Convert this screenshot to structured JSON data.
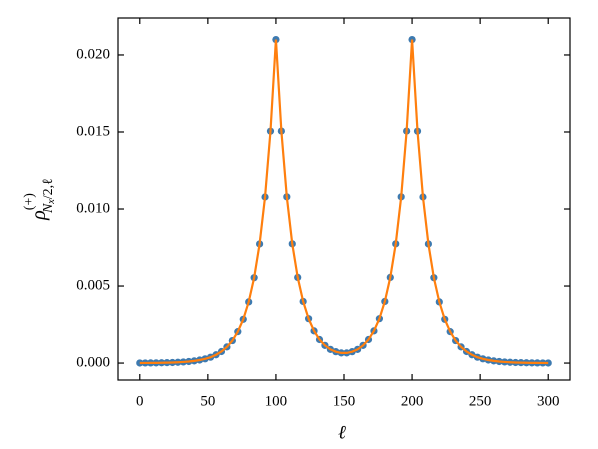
{
  "chart_data": {
    "type": "scatter",
    "xlabel": "ℓ",
    "ylabel": [
      "ρ",
      "(+)",
      "N",
      "x",
      "/2,ℓ"
    ],
    "x": [
      0,
      4,
      8,
      12,
      16,
      20,
      24,
      28,
      32,
      36,
      40,
      44,
      48,
      52,
      56,
      60,
      64,
      68,
      72,
      76,
      80,
      84,
      88,
      92,
      96,
      100,
      104,
      108,
      112,
      116,
      120,
      124,
      128,
      132,
      136,
      140,
      144,
      148,
      152,
      156,
      160,
      164,
      168,
      172,
      176,
      180,
      184,
      188,
      192,
      196,
      200,
      204,
      208,
      212,
      216,
      220,
      224,
      228,
      232,
      236,
      240,
      244,
      248,
      252,
      256,
      260,
      264,
      268,
      272,
      276,
      280,
      284,
      288,
      292,
      296,
      300
    ],
    "series": [
      {
        "color": "#3d7ab0",
        "style": "markers",
        "values": [
          5e-06,
          7e-06,
          1e-05,
          1.4e-05,
          1.9e-05,
          2.7e-05,
          3.7e-05,
          5.2e-05,
          7.3e-05,
          0.000101,
          0.000142,
          0.000198,
          0.000276,
          0.00038,
          0.00054,
          0.00075,
          0.00105,
          0.00146,
          0.00204,
          0.00284,
          0.00397,
          0.00554,
          0.00773,
          0.01078,
          0.01505,
          0.021,
          0.01506,
          0.01079,
          0.00774,
          0.00556,
          0.004,
          0.00288,
          0.00209,
          0.00153,
          0.00115,
          0.00089,
          0.00074,
          0.00066,
          0.00066,
          0.00074,
          0.00089,
          0.00115,
          0.00153,
          0.00209,
          0.00288,
          0.004,
          0.00556,
          0.00774,
          0.01079,
          0.01506,
          0.021,
          0.01505,
          0.01078,
          0.00773,
          0.00554,
          0.00397,
          0.00284,
          0.00204,
          0.00146,
          0.00105,
          0.00075,
          0.00054,
          0.00038,
          0.000276,
          0.000198,
          0.000142,
          0.000101,
          7.3e-05,
          5.2e-05,
          3.7e-05,
          2.7e-05,
          1.9e-05,
          1.4e-05,
          1e-05,
          7e-06,
          5e-06
        ]
      },
      {
        "color": "#ff7f0e",
        "style": "line",
        "values": [
          5e-06,
          7e-06,
          1e-05,
          1.4e-05,
          1.9e-05,
          2.7e-05,
          3.7e-05,
          5.2e-05,
          7.3e-05,
          0.000101,
          0.000142,
          0.000198,
          0.000276,
          0.00038,
          0.00054,
          0.00075,
          0.00105,
          0.00146,
          0.00204,
          0.00284,
          0.00397,
          0.00554,
          0.00773,
          0.01078,
          0.01505,
          0.021,
          0.01506,
          0.01079,
          0.00774,
          0.00556,
          0.004,
          0.00288,
          0.00209,
          0.00153,
          0.00115,
          0.00089,
          0.00074,
          0.00066,
          0.00066,
          0.00074,
          0.00089,
          0.00115,
          0.00153,
          0.00209,
          0.00288,
          0.004,
          0.00556,
          0.00774,
          0.01079,
          0.01506,
          0.021,
          0.01505,
          0.01078,
          0.00773,
          0.00554,
          0.00397,
          0.00284,
          0.00204,
          0.00146,
          0.00105,
          0.00075,
          0.00054,
          0.00038,
          0.000276,
          0.000198,
          0.000142,
          0.000101,
          7.3e-05,
          5.2e-05,
          3.7e-05,
          2.7e-05,
          1.9e-05,
          1.4e-05,
          1e-05,
          7e-06,
          5e-06
        ]
      }
    ],
    "xlim": [
      -16,
      316
    ],
    "xticks": [
      0,
      50,
      100,
      150,
      200,
      250,
      300
    ],
    "ylim": [
      -0.0011,
      0.0224
    ],
    "yticks": [
      {
        "value": 0,
        "label": "0.000"
      },
      {
        "value": 0.005,
        "label": "0.005"
      },
      {
        "value": 0.01,
        "label": "0.010"
      },
      {
        "value": 0.015,
        "label": "0.015"
      },
      {
        "value": 0.02,
        "label": "0.020"
      }
    ]
  }
}
